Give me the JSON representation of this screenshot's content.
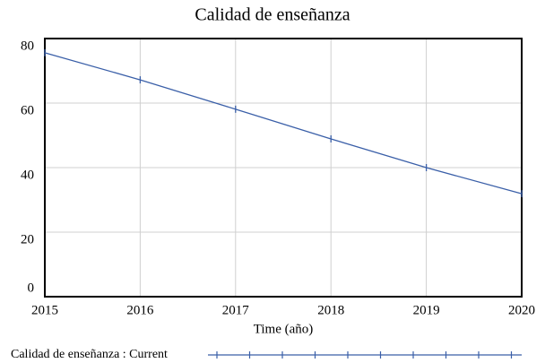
{
  "chart_data": {
    "type": "line",
    "title": "Calidad de enseñanza",
    "x_label": "Time (año)",
    "x": [
      2015,
      2016,
      2017,
      2018,
      2019,
      2020
    ],
    "series": [
      {
        "name": "Calidad de enseñanza : Current",
        "color": "#3a5fa8",
        "values": [
          75.6,
          67.2,
          58.1,
          48.9,
          40,
          31.9
        ]
      }
    ],
    "xlim": [
      2015,
      2020
    ],
    "xticks": [
      2015,
      2016,
      2017,
      2018,
      2019,
      2020
    ],
    "ylim": [
      0,
      80
    ],
    "yticks": [
      0,
      20,
      40,
      60,
      80
    ],
    "grid": true,
    "legend": "bottom"
  }
}
